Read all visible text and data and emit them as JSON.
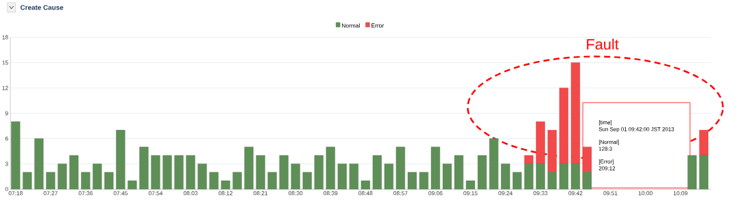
{
  "chart_data": {
    "type": "bar",
    "title": "Create Cause",
    "stacked": true,
    "legend": "top",
    "grid": "y",
    "categories": [
      "07:18",
      null,
      null,
      "07:27",
      null,
      null,
      "07:36",
      null,
      null,
      "07:45",
      null,
      null,
      "07:54",
      null,
      null,
      "08:03",
      null,
      null,
      "08:12",
      null,
      null,
      "08:21",
      null,
      null,
      "08:30",
      null,
      null,
      "08:39",
      null,
      null,
      "08:48",
      null,
      null,
      "08:57",
      null,
      null,
      "09:06",
      null,
      null,
      "09:15",
      null,
      null,
      "09:24",
      null,
      null,
      "09:33",
      null,
      null,
      "09:42",
      null,
      null,
      "09:51",
      null,
      null,
      "10:00",
      null,
      null,
      "10:09",
      null,
      null
    ],
    "series": [
      {
        "name": "Normal",
        "color": "#5e8f57",
        "values": [
          8,
          2,
          6,
          2,
          3,
          4,
          2,
          3,
          2,
          7,
          1,
          5,
          4,
          4,
          4,
          4,
          3,
          2,
          1,
          2,
          5,
          4,
          2,
          4,
          3,
          2,
          4,
          5,
          3,
          3,
          1,
          4,
          3,
          5,
          2,
          2,
          5,
          3,
          4,
          1,
          4,
          6,
          3,
          2,
          3,
          3,
          2,
          3,
          3,
          2,
          null,
          null,
          null,
          null,
          null,
          null,
          null,
          null,
          4,
          4
        ]
      },
      {
        "name": "Error",
        "color": "#f24a4a",
        "values": [
          0,
          0,
          0,
          0,
          0,
          0,
          0,
          0,
          0,
          0,
          0,
          0,
          0,
          0,
          0,
          0,
          0,
          0,
          0,
          0,
          0,
          0,
          0,
          0,
          0,
          0,
          0,
          0,
          0,
          0,
          0,
          0,
          0,
          0,
          0,
          0,
          0,
          0,
          0,
          0,
          0,
          0,
          0,
          0,
          1,
          5,
          5,
          9,
          12,
          3,
          null,
          null,
          null,
          null,
          null,
          null,
          null,
          null,
          0,
          3
        ]
      }
    ],
    "ylim": [
      0,
      18
    ],
    "yticks": [
      0,
      3,
      6,
      9,
      12,
      15,
      18
    ],
    "annotations": [
      "Fault",
      "[time]",
      "Sun Sep 01 09:42:00 JST 2013",
      "[Normal]",
      "128:3",
      "[Error]",
      "209:12"
    ]
  }
}
